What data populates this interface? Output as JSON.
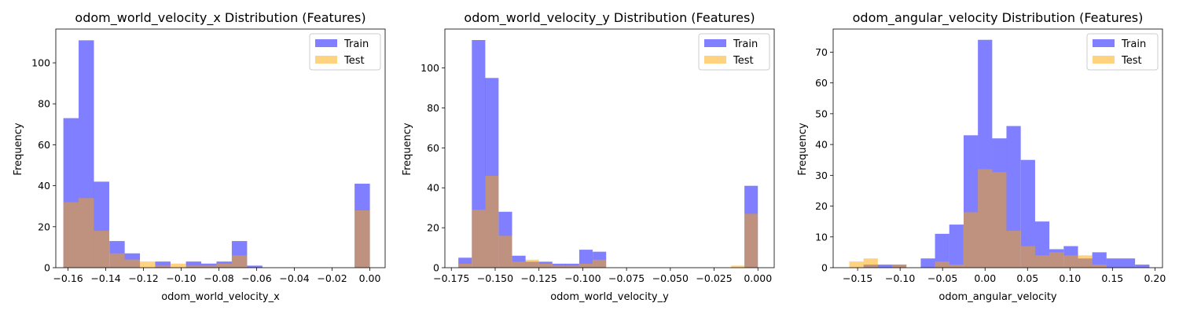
{
  "chart_data": [
    {
      "type": "bar",
      "title": "odom_world_velocity_x Distribution (Features)",
      "xlabel": "odom_world_velocity_x",
      "ylabel": "Frequency",
      "xlim": [
        -0.1665,
        0.0081
      ],
      "ylim": [
        0,
        116.5
      ],
      "xticks": [
        -0.16,
        -0.14,
        -0.12,
        -0.1,
        -0.08,
        -0.06,
        -0.04,
        -0.02,
        0.0
      ],
      "xtick_labels": [
        "−0.16",
        "−0.14",
        "−0.12",
        "−0.10",
        "−0.08",
        "−0.06",
        "−0.04",
        "−0.02",
        "0.00"
      ],
      "yticks": [
        0,
        20,
        40,
        60,
        80,
        100
      ],
      "legend": {
        "position": "top-right",
        "entries": [
          "Train",
          "Test"
        ]
      },
      "colors": {
        "Train": "#0000ff",
        "Test": "#ffa500",
        "overlap": "#bb9179"
      },
      "series": [
        {
          "name": "Train",
          "bin_width": 0.00812,
          "bins": [
            [
              -0.1625,
              73
            ],
            [
              -0.1544,
              111
            ],
            [
              -0.1463,
              42
            ],
            [
              -0.1381,
              13
            ],
            [
              -0.13,
              7
            ],
            [
              -0.1219,
              0
            ],
            [
              -0.1138,
              3
            ],
            [
              -0.1057,
              0
            ],
            [
              -0.0975,
              3
            ],
            [
              -0.0894,
              2
            ],
            [
              -0.0813,
              3
            ],
            [
              -0.0732,
              13
            ],
            [
              -0.0651,
              1
            ],
            [
              -0.0081,
              41
            ]
          ]
        },
        {
          "name": "Test",
          "bin_width": 0.00812,
          "bins": [
            [
              -0.1625,
              32
            ],
            [
              -0.1544,
              34
            ],
            [
              -0.1463,
              18
            ],
            [
              -0.1381,
              7
            ],
            [
              -0.13,
              4
            ],
            [
              -0.1219,
              3
            ],
            [
              -0.1138,
              1
            ],
            [
              -0.1057,
              2
            ],
            [
              -0.0975,
              1
            ],
            [
              -0.0894,
              1
            ],
            [
              -0.0813,
              2
            ],
            [
              -0.0732,
              6
            ],
            [
              -0.0081,
              28
            ]
          ]
        }
      ]
    },
    {
      "type": "bar",
      "title": "odom_world_velocity_y Distribution (Features)",
      "xlabel": "odom_world_velocity_y",
      "ylabel": "Frequency",
      "xlim": [
        -0.1787,
        0.0093
      ],
      "ylim": [
        0,
        119.5
      ],
      "xticks": [
        -0.175,
        -0.15,
        -0.125,
        -0.1,
        -0.075,
        -0.05,
        -0.025,
        0.0
      ],
      "xtick_labels": [
        "−0.175",
        "−0.150",
        "−0.125",
        "−0.100",
        "−0.075",
        "−0.050",
        "−0.025",
        "0.000"
      ],
      "yticks": [
        0,
        20,
        40,
        60,
        80,
        100
      ],
      "legend": {
        "position": "top-right",
        "entries": [
          "Train",
          "Test"
        ]
      },
      "colors": {
        "Train": "#0000ff",
        "Test": "#ffa500",
        "overlap": "#bb9179"
      },
      "series": [
        {
          "name": "Train",
          "bin_width": 0.00767,
          "bins": [
            [
              -0.171,
              5
            ],
            [
              -0.1633,
              114
            ],
            [
              -0.1557,
              95
            ],
            [
              -0.148,
              28
            ],
            [
              -0.1403,
              6
            ],
            [
              -0.1327,
              3
            ],
            [
              -0.125,
              3
            ],
            [
              -0.1173,
              2
            ],
            [
              -0.1097,
              2
            ],
            [
              -0.102,
              9
            ],
            [
              -0.0943,
              8
            ],
            [
              -0.0077,
              41
            ]
          ]
        },
        {
          "name": "Test",
          "bin_width": 0.00767,
          "bins": [
            [
              -0.171,
              2
            ],
            [
              -0.1633,
              29
            ],
            [
              -0.1557,
              46
            ],
            [
              -0.148,
              16
            ],
            [
              -0.1403,
              3
            ],
            [
              -0.1327,
              4
            ],
            [
              -0.125,
              2
            ],
            [
              -0.1173,
              1
            ],
            [
              -0.1097,
              1
            ],
            [
              -0.102,
              2
            ],
            [
              -0.0943,
              4
            ],
            [
              -0.0153,
              1
            ],
            [
              -0.0077,
              27
            ]
          ]
        }
      ]
    },
    {
      "type": "bar",
      "title": "odom_angular_velocity Distribution (Features)",
      "xlabel": "odom_angular_velocity",
      "ylabel": "Frequency",
      "xlim": [
        -0.1788,
        0.2089
      ],
      "ylim": [
        0,
        77.5
      ],
      "xticks": [
        -0.15,
        -0.1,
        -0.05,
        0.0,
        0.05,
        0.1,
        0.15,
        0.2
      ],
      "xtick_labels": [
        "−0.15",
        "−0.10",
        "−0.05",
        "0.00",
        "0.05",
        "0.10",
        "0.15",
        "0.20"
      ],
      "yticks": [
        0,
        10,
        20,
        30,
        40,
        50,
        60,
        70
      ],
      "legend": {
        "position": "top-right",
        "entries": [
          "Train",
          "Test"
        ]
      },
      "colors": {
        "Train": "#0000ff",
        "Test": "#ffa500",
        "overlap": "#bb9179"
      },
      "series": [
        {
          "name": "Train",
          "bin_width": 0.01683,
          "bins": [
            [
              -0.143,
              1
            ],
            [
              -0.1262,
              1
            ],
            [
              -0.1094,
              1
            ],
            [
              -0.0926,
              0
            ],
            [
              -0.0757,
              3
            ],
            [
              -0.0589,
              11
            ],
            [
              -0.0421,
              14
            ],
            [
              -0.0252,
              43
            ],
            [
              -0.0084,
              74
            ],
            [
              0.0084,
              42
            ],
            [
              0.0252,
              46
            ],
            [
              0.0421,
              35
            ],
            [
              0.0589,
              15
            ],
            [
              0.0757,
              6
            ],
            [
              0.0926,
              7
            ],
            [
              0.1094,
              3
            ],
            [
              0.1262,
              5
            ],
            [
              0.143,
              3
            ],
            [
              0.1598,
              3
            ],
            [
              0.1767,
              1
            ]
          ]
        },
        {
          "name": "Test",
          "bin_width": 0.01683,
          "bins": [
            [
              -0.1598,
              2
            ],
            [
              -0.143,
              3
            ],
            [
              -0.1262,
              0
            ],
            [
              -0.1094,
              1
            ],
            [
              -0.0926,
              0
            ],
            [
              -0.0757,
              0
            ],
            [
              -0.0589,
              2
            ],
            [
              -0.0421,
              1
            ],
            [
              -0.0252,
              18
            ],
            [
              -0.0084,
              32
            ],
            [
              0.0084,
              31
            ],
            [
              0.0252,
              12
            ],
            [
              0.0421,
              7
            ],
            [
              0.0589,
              4
            ],
            [
              0.0757,
              5
            ],
            [
              0.0926,
              4
            ],
            [
              0.1094,
              4
            ],
            [
              0.1262,
              1
            ]
          ]
        }
      ]
    }
  ]
}
